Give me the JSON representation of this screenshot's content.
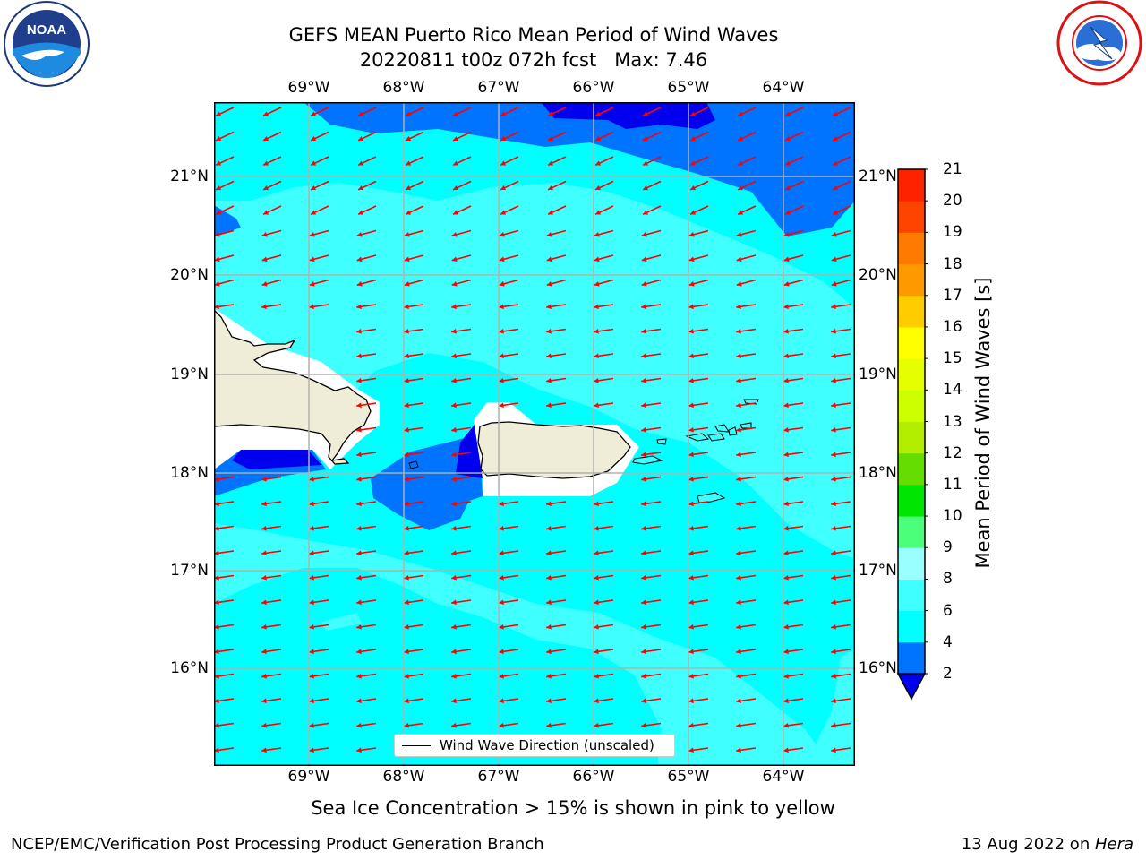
{
  "title_line1": "GEFS MEAN Puerto Rico Mean Period of Wind Waves",
  "title_line2": "20220811 t00z 072h fcst   Max: 7.46",
  "lon_ticks": [
    "69°W",
    "68°W",
    "67°W",
    "66°W",
    "65°W",
    "64°W"
  ],
  "lat_ticks": [
    "21°N",
    "20°N",
    "19°N",
    "18°N",
    "17°N",
    "16°N"
  ],
  "colorbar": {
    "title": "Mean Period of Wind Waves [s]",
    "levels": [
      "2",
      "4",
      "6",
      "8",
      "9",
      "10",
      "11",
      "12",
      "13",
      "14",
      "15",
      "16",
      "17",
      "18",
      "19",
      "20",
      "21"
    ],
    "colors": [
      "#0000ee",
      "#0073ff",
      "#00ffff",
      "#40ffff",
      "#99ffff",
      "#4cff7a",
      "#00e600",
      "#66dd00",
      "#b3ee00",
      "#ccff00",
      "#e6ff00",
      "#ffff00",
      "#ffcc00",
      "#ff9900",
      "#ff7a00",
      "#ff4400",
      "#ff2200",
      "#ff0000"
    ]
  },
  "legend_label": "Wind Wave Direction (unscaled)",
  "note": "Sea Ice Concentration > 15% is shown in pink to yellow",
  "footer_left": "NCEP/EMC/Verification Post Processing Product Generation Branch",
  "footer_date": "13 Aug 2022 on ",
  "footer_machine": "Hera",
  "logo_left_text": "NOAA",
  "colors": {
    "ocean_light": "#40ffff",
    "ocean_cyan": "#00ffff",
    "ocean_blue": "#0073ff",
    "ocean_dark": "#0000ee",
    "land": "#efedd8",
    "arrow": "#ff0000"
  }
}
